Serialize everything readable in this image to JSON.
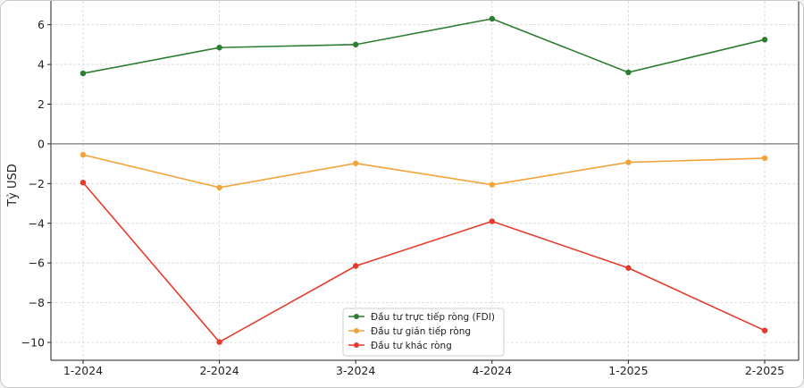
{
  "chart_data": {
    "type": "line",
    "title": "",
    "xlabel": "",
    "ylabel": "Tỷ USD",
    "categories": [
      "1-2024",
      "2-2024",
      "3-2024",
      "4-2024",
      "1-2025",
      "2-2025"
    ],
    "ylim": [
      -10.9,
      7.2
    ],
    "yticks": [
      -10,
      -8,
      -6,
      -4,
      -2,
      0,
      2,
      4,
      6
    ],
    "ytick_labels": [
      "−10",
      "−8",
      "−6",
      "−4",
      "−2",
      "0",
      "2",
      "4",
      "6"
    ],
    "grid": true,
    "zero_line": true,
    "legend_position": "lower-center",
    "series": [
      {
        "name": "Đầu tư trực tiếp ròng (FDI)",
        "color": "#2e7d32",
        "values": [
          3.55,
          4.85,
          5.0,
          6.3,
          3.6,
          5.25
        ]
      },
      {
        "name": "Đầu tư gián tiếp ròng",
        "color": "#f2a33a",
        "values": [
          -0.55,
          -2.2,
          -0.98,
          -2.06,
          -0.93,
          -0.72
        ]
      },
      {
        "name": "Đầu tư khác ròng",
        "color": "#e53b2c",
        "values": [
          -1.95,
          -9.98,
          -6.15,
          -3.9,
          -6.25,
          -9.4
        ]
      }
    ]
  }
}
